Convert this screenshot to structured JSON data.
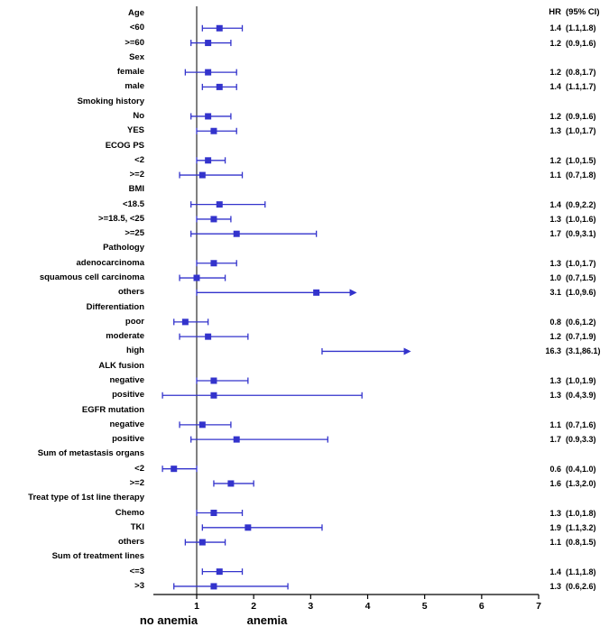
{
  "colors": {
    "series": "#3333cc",
    "axis": "#000000",
    "text": "#000000"
  },
  "chart_data": {
    "type": "forest",
    "title": "",
    "columns": {
      "effect": "HR",
      "interval": "(95% CI)"
    },
    "x_axis": {
      "ticks": [
        1,
        2,
        3,
        4,
        5,
        6,
        7
      ],
      "min": 0.24,
      "max": 7,
      "reference_line": 1,
      "grid": false
    },
    "group_labels": {
      "left_of_reference": "no anemia",
      "right_of_reference": "anemia"
    },
    "rows": [
      {
        "label": "Age",
        "header": true
      },
      {
        "label": "<60",
        "hr": "1.4",
        "ci": "(1.1,1.8)",
        "point": 1.4,
        "lo": 1.1,
        "hi": 1.8
      },
      {
        "label": ">=60",
        "hr": "1.2",
        "ci": "(0.9,1.6)",
        "point": 1.2,
        "lo": 0.9,
        "hi": 1.6
      },
      {
        "label": "Sex",
        "header": true
      },
      {
        "label": "female",
        "hr": "1.2",
        "ci": "(0.8,1.7)",
        "point": 1.2,
        "lo": 0.8,
        "hi": 1.7
      },
      {
        "label": "male",
        "hr": "1.4",
        "ci": "(1.1,1.7)",
        "point": 1.4,
        "lo": 1.1,
        "hi": 1.7
      },
      {
        "label": "Smoking history",
        "header": true
      },
      {
        "label": "No",
        "hr": "1.2",
        "ci": "(0.9,1.6)",
        "point": 1.2,
        "lo": 0.9,
        "hi": 1.6
      },
      {
        "label": "YES",
        "hr": "1.3",
        "ci": "(1.0,1.7)",
        "point": 1.3,
        "lo": 1.0,
        "hi": 1.7
      },
      {
        "label": "ECOG PS",
        "header": true
      },
      {
        "label": "<2",
        "hr": "1.2",
        "ci": "(1.0,1.5)",
        "point": 1.2,
        "lo": 1.0,
        "hi": 1.5
      },
      {
        "label": ">=2",
        "hr": "1.1",
        "ci": "(0.7,1.8)",
        "point": 1.1,
        "lo": 0.7,
        "hi": 1.8
      },
      {
        "label": "BMI",
        "header": true
      },
      {
        "label": "<18.5",
        "hr": "1.4",
        "ci": "(0.9,2.2)",
        "point": 1.4,
        "lo": 0.9,
        "hi": 2.2
      },
      {
        "label": ">=18.5, <25",
        "hr": "1.3",
        "ci": "(1.0,1.6)",
        "point": 1.3,
        "lo": 1.0,
        "hi": 1.6
      },
      {
        "label": ">=25",
        "hr": "1.7",
        "ci": "(0.9,3.1)",
        "point": 1.7,
        "lo": 0.9,
        "hi": 3.1
      },
      {
        "label": "Pathology",
        "header": true
      },
      {
        "label": "adenocarcinoma",
        "hr": "1.3",
        "ci": "(1.0,1.7)",
        "point": 1.3,
        "lo": 1.0,
        "hi": 1.7
      },
      {
        "label": "squamous cell carcinoma",
        "hr": "1.0",
        "ci": "(0.7,1.5)",
        "point": 1.0,
        "lo": 0.7,
        "hi": 1.5
      },
      {
        "label": "others",
        "hr": "3.1",
        "ci": "(1.0,9.6)",
        "point": 3.1,
        "lo": 1.0,
        "hi": 9.6,
        "arrow": true,
        "draw_hi": 3.7
      },
      {
        "label": "Differentiation",
        "header": true
      },
      {
        "label": "poor",
        "hr": "0.8",
        "ci": "(0.6,1.2)",
        "point": 0.8,
        "lo": 0.6,
        "hi": 1.2
      },
      {
        "label": "moderate",
        "hr": "1.2",
        "ci": "(0.7,1.9)",
        "point": 1.2,
        "lo": 0.7,
        "hi": 1.9
      },
      {
        "label": "high",
        "hr": "16.3",
        "ci": "(3.1,86.1)",
        "point": 16.3,
        "lo": 3.1,
        "hi": 86.1,
        "arrow": true,
        "draw_lo": 3.2,
        "draw_hi": 4.65
      },
      {
        "label": "ALK fusion",
        "header": true
      },
      {
        "label": "negative",
        "hr": "1.3",
        "ci": "(1.0,1.9)",
        "point": 1.3,
        "lo": 1.0,
        "hi": 1.9
      },
      {
        "label": "positive",
        "hr": "1.3",
        "ci": "(0.4,3.9)",
        "point": 1.3,
        "lo": 0.4,
        "hi": 3.9
      },
      {
        "label": "EGFR mutation",
        "header": true
      },
      {
        "label": "negative",
        "hr": "1.1",
        "ci": "(0.7,1.6)",
        "point": 1.1,
        "lo": 0.7,
        "hi": 1.6
      },
      {
        "label": "positive",
        "hr": "1.7",
        "ci": "(0.9,3.3)",
        "point": 1.7,
        "lo": 0.9,
        "hi": 3.3
      },
      {
        "label": "Sum of metastasis organs",
        "header": true
      },
      {
        "label": "<2",
        "hr": "0.6",
        "ci": "(0.4,1.0)",
        "point": 0.6,
        "lo": 0.4,
        "hi": 1.0
      },
      {
        "label": ">=2",
        "hr": "1.6",
        "ci": "(1.3,2.0)",
        "point": 1.6,
        "lo": 1.3,
        "hi": 2.0
      },
      {
        "label": "Treat type of 1st line therapy",
        "header": true
      },
      {
        "label": "Chemo",
        "hr": "1.3",
        "ci": "(1.0,1.8)",
        "point": 1.3,
        "lo": 1.0,
        "hi": 1.8
      },
      {
        "label": "TKI",
        "hr": "1.9",
        "ci": "(1.1,3.2)",
        "point": 1.9,
        "lo": 1.1,
        "hi": 3.2
      },
      {
        "label": "others",
        "hr": "1.1",
        "ci": "(0.8,1.5)",
        "point": 1.1,
        "lo": 0.8,
        "hi": 1.5
      },
      {
        "label": "Sum of treatment lines",
        "header": true
      },
      {
        "label": "<=3",
        "hr": "1.4",
        "ci": "(1.1,1.8)",
        "point": 1.4,
        "lo": 1.1,
        "hi": 1.8
      },
      {
        "label": ">3",
        "hr": "1.3",
        "ci": "(0.6,2.6)",
        "point": 1.3,
        "lo": 0.6,
        "hi": 2.6
      }
    ]
  }
}
